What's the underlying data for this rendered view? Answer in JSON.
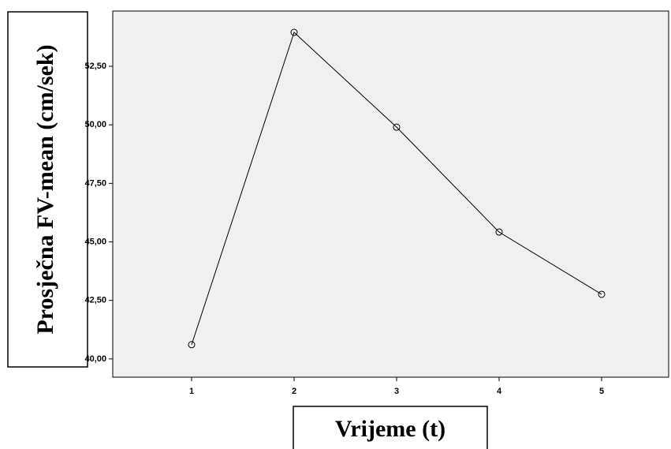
{
  "chart_data": {
    "type": "line",
    "x_label": "Vrijeme (t)",
    "y_label": "Prosječna FV-mean (cm/sek)",
    "categories": [
      "1",
      "2",
      "3",
      "4",
      "5"
    ],
    "series": [
      {
        "name": "FV-mean",
        "color": "#000000",
        "values": [
          40.61,
          53.95,
          49.9,
          45.42,
          42.76
        ]
      }
    ],
    "ylim": [
      39.22,
      54.86
    ],
    "yticks": [
      {
        "value": 40,
        "label": "40,00"
      },
      {
        "value": 42.5,
        "label": "42,50"
      },
      {
        "value": 45,
        "label": "45,00"
      },
      {
        "value": 47.5,
        "label": "47,50"
      },
      {
        "value": 50,
        "label": "50,00"
      },
      {
        "value": 52.5,
        "label": "52,50"
      }
    ],
    "background": "#f0f0f0"
  }
}
